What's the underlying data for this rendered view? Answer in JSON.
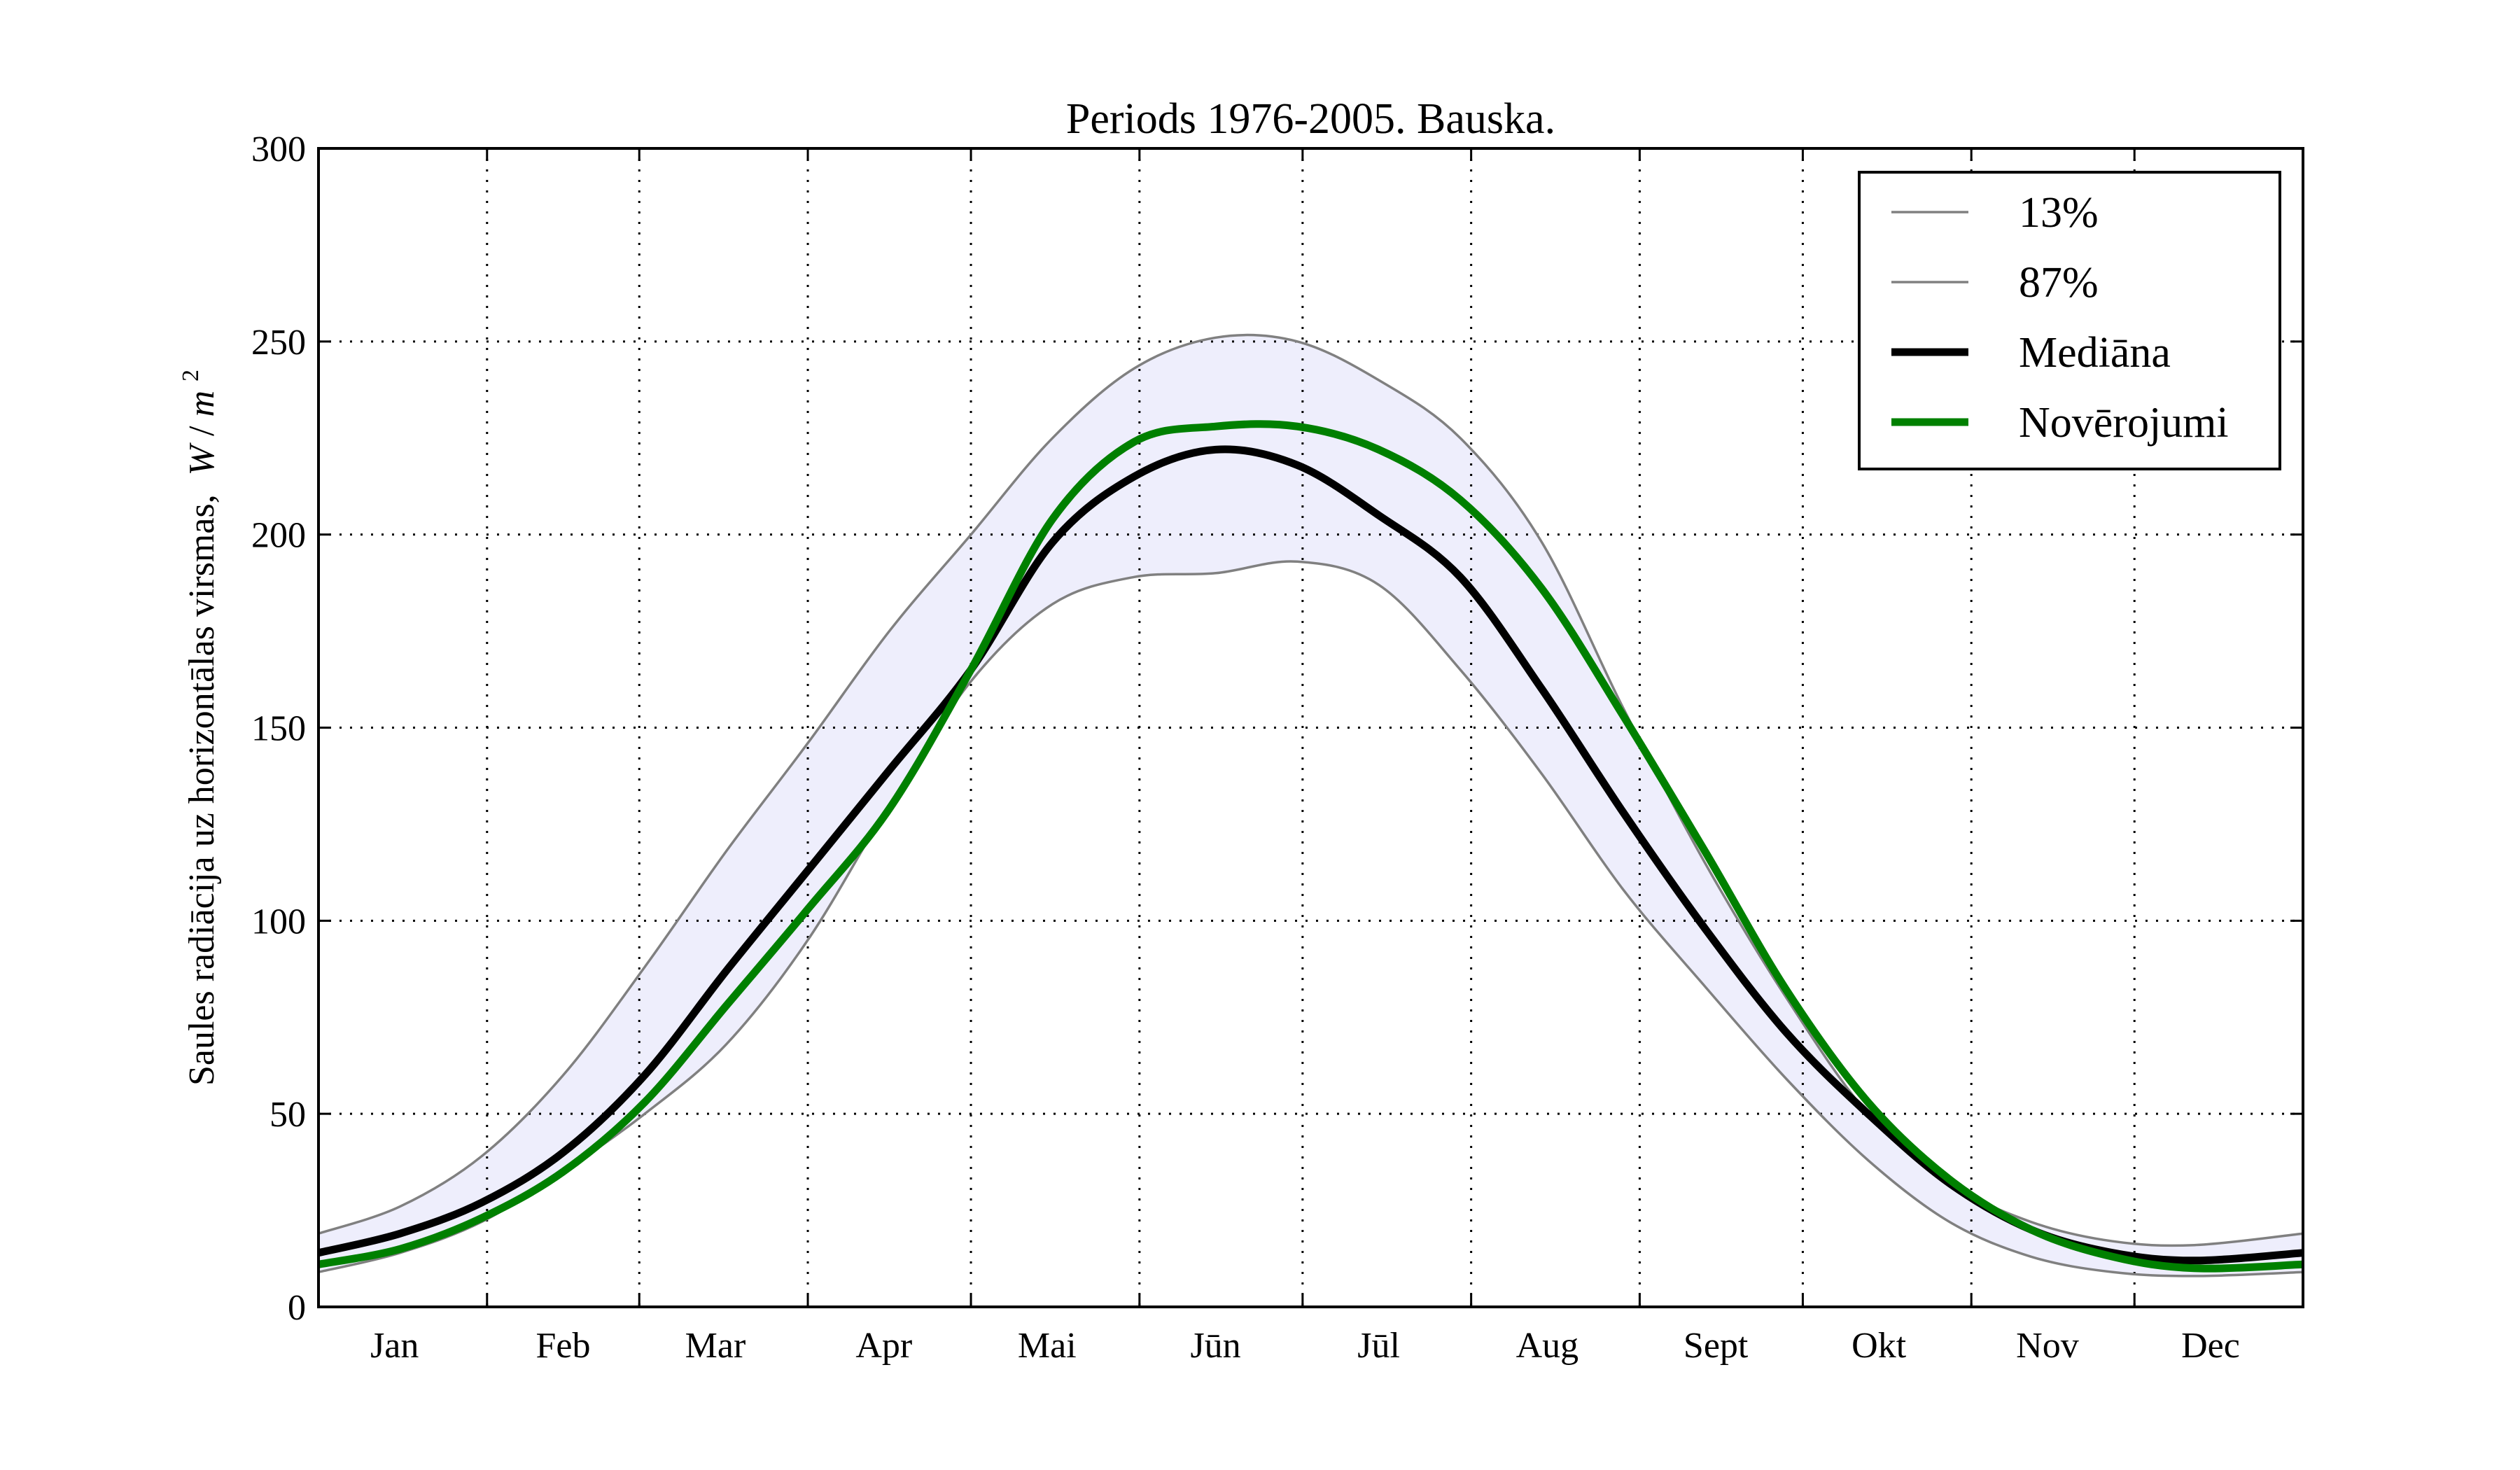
{
  "chart_data": {
    "type": "line",
    "title": "Periods 1976-2005. Bauska.",
    "ylabel": "Saules radiācija uz horizontālas virsmas,",
    "ylabel_unit_main": "W",
    "ylabel_unit_sep": "/",
    "ylabel_unit_m": "m",
    "ylabel_unit_exp": "2",
    "ylim": [
      0,
      300
    ],
    "xlim": [
      0,
      365
    ],
    "yticks": [
      0,
      50,
      100,
      150,
      200,
      250,
      300
    ],
    "month_boundaries": [
      31,
      59,
      90,
      120,
      151,
      181,
      212,
      243,
      273,
      304,
      334
    ],
    "month_labels": [
      "Jan",
      "Feb",
      "Mar",
      "Apr",
      "Mai",
      "Jūn",
      "Jūl",
      "Aug",
      "Sept",
      "Okt",
      "Nov",
      "Dec"
    ],
    "month_label_positions": [
      14,
      45,
      73,
      104,
      134,
      165,
      195,
      226,
      257,
      287,
      318,
      348
    ],
    "grid": true,
    "legend_position": "top-right",
    "x": [
      0,
      15,
      30,
      45,
      60,
      75,
      90,
      105,
      120,
      135,
      150,
      165,
      180,
      195,
      210,
      225,
      240,
      255,
      270,
      285,
      300,
      315,
      330,
      345,
      365
    ],
    "series": [
      {
        "name": "13%",
        "color": "#808080",
        "values": [
          9,
          14,
          22,
          35,
          50,
          68,
          95,
          130,
          162,
          182,
          189,
          190,
          193,
          187,
          165,
          138,
          108,
          83,
          59,
          38,
          22,
          13,
          9,
          8,
          9
        ]
      },
      {
        "name": "87%",
        "color": "#808080",
        "values": [
          19,
          26,
          39,
          60,
          88,
          118,
          146,
          175,
          200,
          225,
          243,
          251,
          250,
          240,
          225,
          198,
          155,
          115,
          80,
          50,
          32,
          22,
          17,
          16,
          19
        ]
      },
      {
        "name": "Mediāna",
        "color": "#000000",
        "values": [
          14,
          19,
          27,
          40,
          60,
          87,
          113,
          139,
          165,
          198,
          215,
          222,
          218,
          205,
          189,
          160,
          128,
          98,
          71,
          50,
          32,
          20,
          14,
          12,
          14
        ]
      },
      {
        "name": "Novērojumi",
        "color": "#008000",
        "values": [
          11,
          15,
          23,
          35,
          53,
          78,
          103,
          129,
          165,
          204,
          224,
          228,
          228,
          222,
          209,
          186,
          153,
          118,
          82,
          53,
          33,
          20,
          13,
          10,
          11
        ]
      }
    ]
  }
}
